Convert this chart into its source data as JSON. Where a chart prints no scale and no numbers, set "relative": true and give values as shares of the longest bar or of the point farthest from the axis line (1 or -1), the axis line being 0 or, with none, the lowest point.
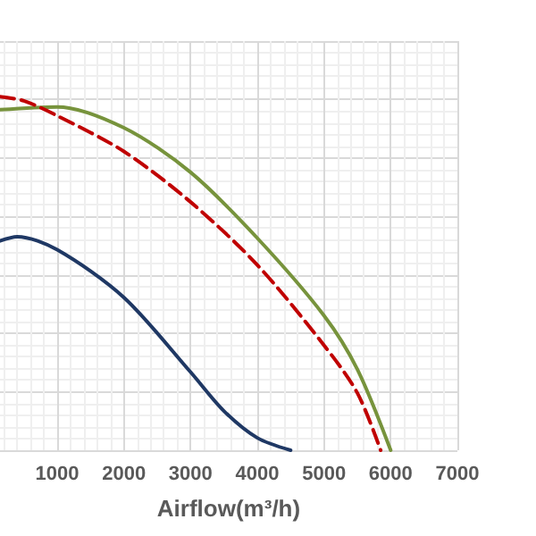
{
  "chart_data": {
    "type": "line",
    "xlabel": "Airflow(m³/h)",
    "relative": true,
    "xlim": [
      143,
      7000
    ],
    "xticks": [
      1000,
      2000,
      3000,
      4000,
      5000,
      6000,
      7000
    ],
    "grid": true,
    "marker": "none",
    "series": [
      {
        "color": "#77933c",
        "line_style": "solid",
        "x": [
          143,
          1000,
          2000,
          3000,
          4000,
          5000,
          5500,
          6000
        ],
        "values": [
          0.963,
          0.971,
          0.912,
          0.786,
          0.6,
          0.381,
          0.229,
          0
        ]
      },
      {
        "color": "#c00000",
        "line_style": "dashed",
        "x": [
          143,
          500,
          1000,
          2000,
          3000,
          4000,
          5000,
          5500,
          5850
        ],
        "values": [
          1,
          0.988,
          0.946,
          0.845,
          0.702,
          0.524,
          0.297,
          0.162,
          0
        ]
      },
      {
        "color": "#1f3864",
        "line_style": "solid",
        "x": [
          143,
          400,
          1000,
          2000,
          3000,
          3500,
          4000,
          4500
        ],
        "values": [
          0.592,
          0.604,
          0.567,
          0.432,
          0.221,
          0.111,
          0.035,
          0
        ]
      }
    ]
  }
}
